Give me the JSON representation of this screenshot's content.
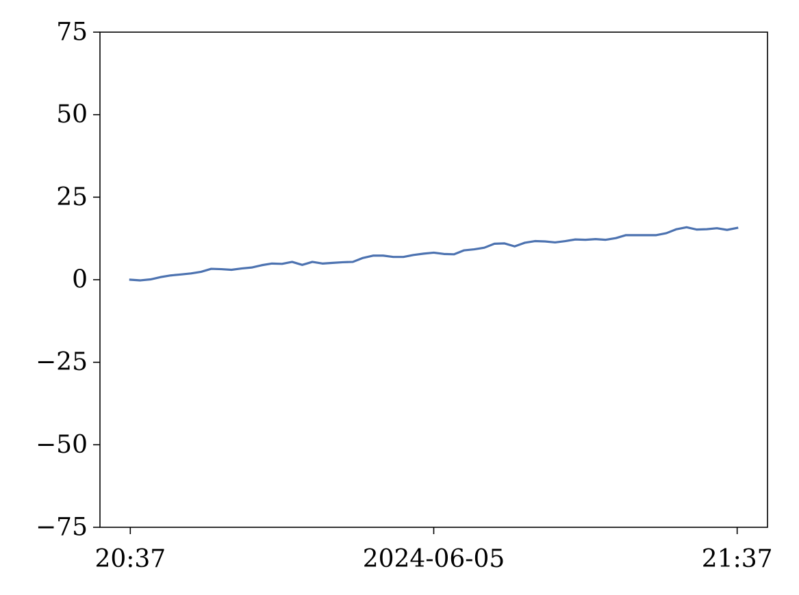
{
  "chart_data": {
    "type": "line",
    "title": "",
    "xlabel": "",
    "ylabel": "",
    "date": "2024-06-05",
    "xlim": [
      "20:34",
      "21:40"
    ],
    "ylim": [
      -75,
      75
    ],
    "grid": false,
    "legend": "none",
    "x_ticks": [
      {
        "value": "20:37",
        "label": "20:37"
      },
      {
        "value": "21:07",
        "label": "2024-06-05"
      },
      {
        "value": "21:37",
        "label": "21:37"
      }
    ],
    "y_ticks": [
      75,
      50,
      25,
      0,
      -25,
      -50,
      -75
    ],
    "y_tick_labels": [
      "75",
      "50",
      "25",
      "0",
      "−25",
      "−50",
      "−75"
    ],
    "series": [
      {
        "color": "#4c72b0",
        "x": [
          "20:37",
          "20:38",
          "20:39",
          "20:40",
          "20:41",
          "20:42",
          "20:43",
          "20:44",
          "20:45",
          "20:46",
          "20:47",
          "20:48",
          "20:49",
          "20:50",
          "20:51",
          "20:52",
          "20:53",
          "20:54",
          "20:55",
          "20:56",
          "20:57",
          "20:58",
          "20:59",
          "21:00",
          "21:01",
          "21:02",
          "21:03",
          "21:04",
          "21:05",
          "21:06",
          "21:07",
          "21:08",
          "21:09",
          "21:10",
          "21:11",
          "21:12",
          "21:13",
          "21:14",
          "21:15",
          "21:16",
          "21:17",
          "21:18",
          "21:19",
          "21:20",
          "21:21",
          "21:22",
          "21:23",
          "21:24",
          "21:25",
          "21:26",
          "21:27",
          "21:28",
          "21:29",
          "21:30",
          "21:31",
          "21:32",
          "21:33",
          "21:34",
          "21:35",
          "21:36",
          "21:37"
        ],
        "values": [
          0.0,
          -0.2,
          0.1,
          0.8,
          1.3,
          1.6,
          1.9,
          2.4,
          3.3,
          3.2,
          3.0,
          3.4,
          3.7,
          4.4,
          4.9,
          4.8,
          5.4,
          4.5,
          5.4,
          4.9,
          5.1,
          5.3,
          5.4,
          6.6,
          7.3,
          7.3,
          6.9,
          6.9,
          7.5,
          7.9,
          8.2,
          7.8,
          7.7,
          8.9,
          9.2,
          9.7,
          10.9,
          11.0,
          10.1,
          11.2,
          11.7,
          11.6,
          11.3,
          11.7,
          12.2,
          12.1,
          12.3,
          12.1,
          12.6,
          13.5,
          13.5,
          13.5,
          13.5,
          14.1,
          15.3,
          15.9,
          15.2,
          15.3,
          15.6,
          15.1,
          15.7
        ]
      }
    ]
  }
}
